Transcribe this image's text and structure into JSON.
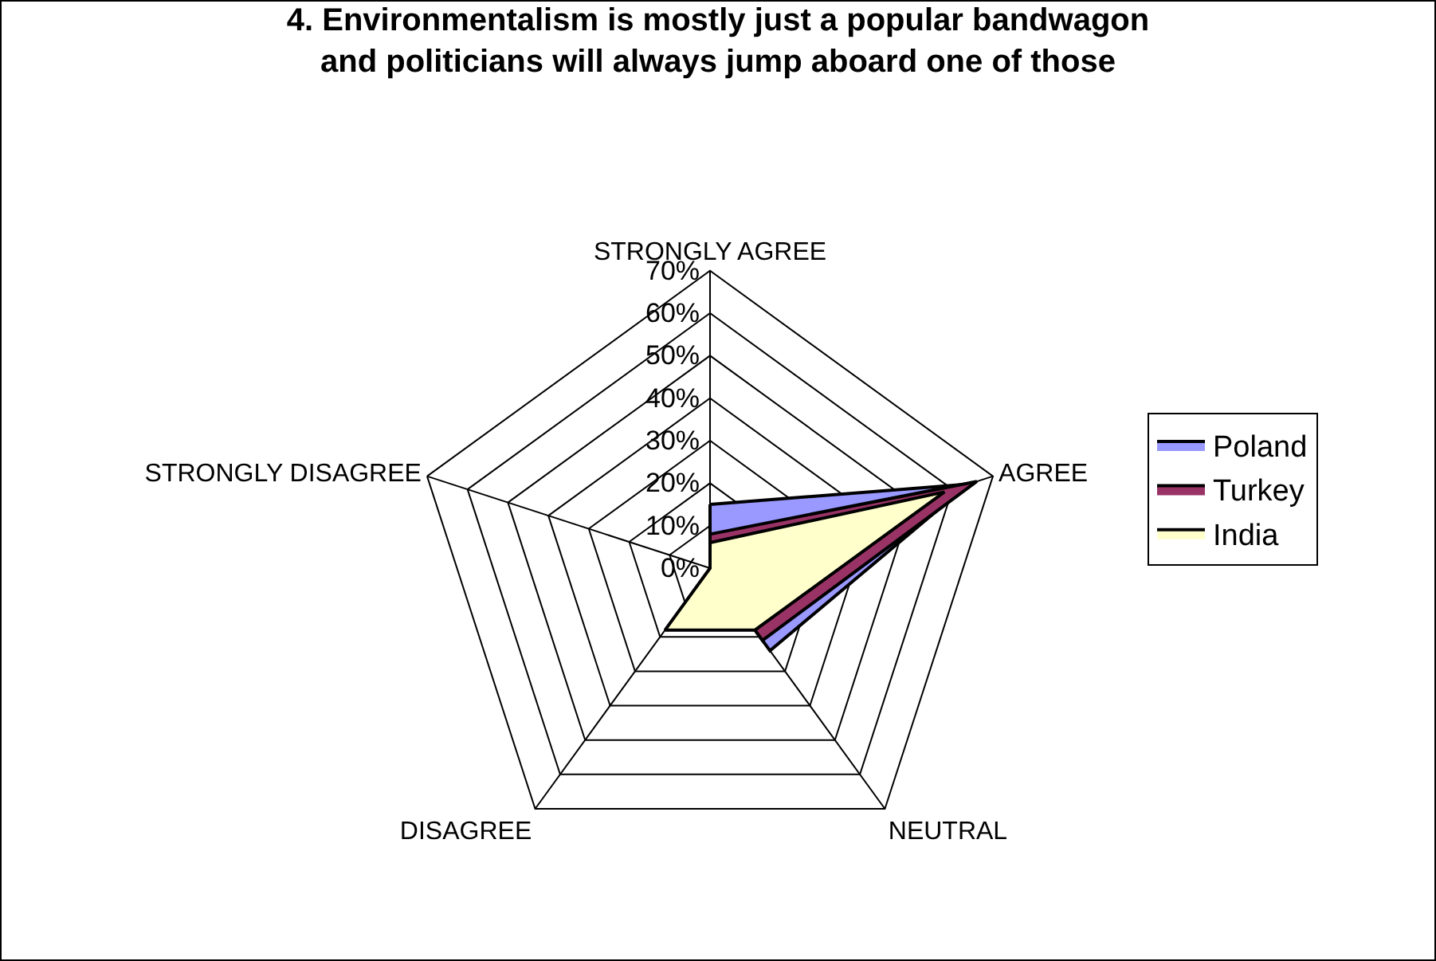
{
  "chart_data": {
    "type": "radar",
    "title": "4. Environmentalism is mostly just a popular bandwagon\nand politicians will always jump aboard one of those",
    "categories": [
      "STRONGLY AGREE",
      "AGREE",
      "NEUTRAL",
      "DISAGREE",
      "STRONGLY DISAGREE"
    ],
    "series": [
      {
        "name": "Poland",
        "color": "#9999ff",
        "values": [
          15,
          64,
          24,
          null,
          0
        ]
      },
      {
        "name": "Turkey",
        "color": "#993366",
        "values": [
          8,
          66,
          21,
          null,
          0
        ]
      },
      {
        "name": "India",
        "color": "#ffffcc",
        "values": [
          6,
          58,
          18,
          18,
          0
        ]
      }
    ],
    "ylim": [
      0,
      70
    ],
    "yticks": [
      {
        "value": 0,
        "label": "0%"
      },
      {
        "value": 10,
        "label": "10%"
      },
      {
        "value": 20,
        "label": "20%"
      },
      {
        "value": 30,
        "label": "30%"
      },
      {
        "value": 40,
        "label": "40%"
      },
      {
        "value": 50,
        "label": "50%"
      },
      {
        "value": 60,
        "label": "60%"
      },
      {
        "value": 70,
        "label": "70%"
      }
    ],
    "grid": true,
    "legend": "right"
  }
}
